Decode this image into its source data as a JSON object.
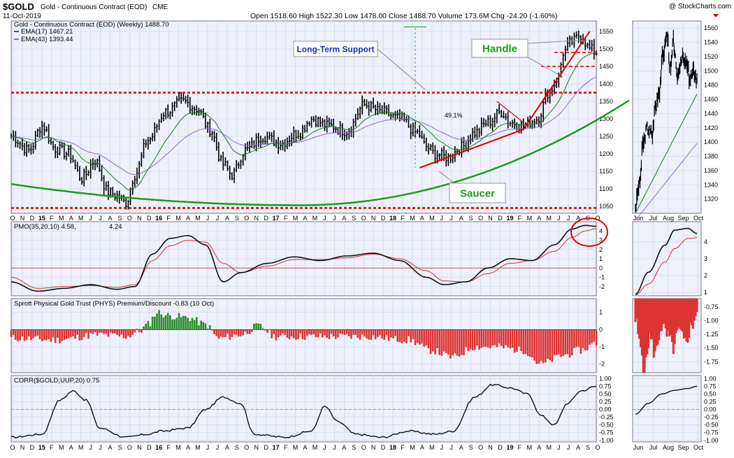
{
  "header": {
    "symbol": "$GOLD",
    "name": "Gold - Continuous Contract (EOD)",
    "exchange": "CME",
    "date": "11-Oct-2019",
    "ohlc": "Open 1518.60  High 1522.30  Low 1478.00  Close 1488.70  Volume 173.6M  Chg -24.20 (-1.60%)",
    "watermark": "@ StockCharts.com"
  },
  "colors": {
    "panel_bg": "#eef1fa",
    "grid": "#c8d2e6",
    "ema17": "#1d7a1d",
    "ema43": "#9966cc",
    "support": "#dd0000",
    "saucer": "#1a9c1a",
    "premium_pos": "#2e8b2e",
    "premium_neg": "#dd3333",
    "pmo": "#111111",
    "pmo_signal": "#cc3333"
  },
  "chart_data": [
    {
      "type": "bar",
      "id": "price",
      "title": "Gold - Continuous Contract (EOD) (Weekly) 1488.70",
      "legend": [
        "EMA(17) 1467.21",
        "EMA(43) 1393.44"
      ],
      "legend_placement": "top-left",
      "ylim": [
        1030,
        1580
      ],
      "yticks": [
        1050,
        1100,
        1150,
        1200,
        1250,
        1300,
        1350,
        1400,
        1450,
        1500,
        1550
      ],
      "x_labels": [
        "O",
        "N",
        "D",
        "15",
        "F",
        "M",
        "A",
        "M",
        "J",
        "J",
        "A",
        "S",
        "O",
        "N",
        "D",
        "16",
        "F",
        "M",
        "A",
        "M",
        "J",
        "J",
        "A",
        "S",
        "O",
        "N",
        "D",
        "17",
        "F",
        "M",
        "A",
        "M",
        "J",
        "J",
        "A",
        "S",
        "O",
        "N",
        "D",
        "18",
        "F",
        "M",
        "A",
        "M",
        "J",
        "J",
        "A",
        "S",
        "O",
        "N",
        "D",
        "19",
        "F",
        "M",
        "A",
        "M",
        "J",
        "J",
        "A",
        "S",
        "O"
      ],
      "weekly_close_keypoints": [
        [
          0,
          1250
        ],
        [
          8,
          1210
        ],
        [
          14,
          1280
        ],
        [
          20,
          1215
        ],
        [
          26,
          1200
        ],
        [
          32,
          1130
        ],
        [
          38,
          1180
        ],
        [
          44,
          1090
        ],
        [
          48,
          1080
        ],
        [
          52,
          1060
        ],
        [
          56,
          1140
        ],
        [
          62,
          1240
        ],
        [
          70,
          1320
        ],
        [
          78,
          1350
        ],
        [
          84,
          1330
        ],
        [
          90,
          1270
        ],
        [
          96,
          1170
        ],
        [
          100,
          1140
        ],
        [
          106,
          1210
        ],
        [
          114,
          1250
        ],
        [
          122,
          1230
        ],
        [
          130,
          1260
        ],
        [
          136,
          1300
        ],
        [
          144,
          1280
        ],
        [
          152,
          1265
        ],
        [
          160,
          1340
        ],
        [
          168,
          1320
        ],
        [
          176,
          1300
        ],
        [
          184,
          1260
        ],
        [
          188,
          1220
        ],
        [
          192,
          1200
        ],
        [
          198,
          1190
        ],
        [
          204,
          1220
        ],
        [
          210,
          1260
        ],
        [
          216,
          1290
        ],
        [
          222,
          1320
        ],
        [
          226,
          1290
        ],
        [
          232,
          1280
        ],
        [
          238,
          1300
        ],
        [
          244,
          1380
        ],
        [
          248,
          1420
        ],
        [
          250,
          1490
        ],
        [
          254,
          1520
        ],
        [
          258,
          1540
        ],
        [
          262,
          1500
        ],
        [
          265,
          1490
        ]
      ],
      "support_levels": [
        1375,
        1045
      ],
      "handle_levels": [
        1450,
        1490
      ],
      "annotations": [
        "Long-Term Support",
        "Handle",
        "Saucer",
        "49.1%"
      ],
      "right_panel": {
        "x_labels": [
          "Jun",
          "Jul",
          "Aug",
          "Sep",
          "Oct"
        ],
        "ylim": [
          1300,
          1570
        ],
        "yticks": [
          1320,
          1340,
          1360,
          1380,
          1400,
          1420,
          1440,
          1460,
          1480,
          1500,
          1520,
          1540,
          1560
        ]
      }
    },
    {
      "type": "line",
      "id": "pmo",
      "title": "PMO(35,20,10) 4.58,",
      "signal_value": "4.24",
      "ylim": [
        -3,
        5
      ],
      "yticks": [
        -2,
        -1,
        0,
        1,
        2,
        3,
        4
      ],
      "pmo_keypoints": [
        [
          0,
          -1.5
        ],
        [
          12,
          -2.5
        ],
        [
          24,
          -2.2
        ],
        [
          36,
          -1.8
        ],
        [
          48,
          -2.3
        ],
        [
          56,
          -2.0
        ],
        [
          64,
          1.5
        ],
        [
          72,
          3.2
        ],
        [
          80,
          3.5
        ],
        [
          88,
          2.5
        ],
        [
          96,
          -1.5
        ],
        [
          104,
          -0.5
        ],
        [
          116,
          0.5
        ],
        [
          128,
          1.2
        ],
        [
          140,
          0.8
        ],
        [
          152,
          1.3
        ],
        [
          164,
          1.6
        ],
        [
          176,
          0.8
        ],
        [
          188,
          -1.0
        ],
        [
          196,
          -1.8
        ],
        [
          206,
          -1.5
        ],
        [
          216,
          0.0
        ],
        [
          226,
          1.0
        ],
        [
          236,
          0.8
        ],
        [
          246,
          2.5
        ],
        [
          254,
          4.2
        ],
        [
          260,
          4.6
        ],
        [
          265,
          4.5
        ]
      ],
      "signal_keypoints": [
        [
          0,
          -1.0
        ],
        [
          12,
          -2.2
        ],
        [
          24,
          -2.0
        ],
        [
          36,
          -1.9
        ],
        [
          48,
          -2.1
        ],
        [
          56,
          -1.8
        ],
        [
          64,
          0.8
        ],
        [
          72,
          2.4
        ],
        [
          80,
          3.0
        ],
        [
          88,
          2.8
        ],
        [
          96,
          0.5
        ],
        [
          104,
          -0.5
        ],
        [
          116,
          0.2
        ],
        [
          128,
          0.9
        ],
        [
          140,
          0.9
        ],
        [
          152,
          1.1
        ],
        [
          164,
          1.5
        ],
        [
          176,
          1.0
        ],
        [
          188,
          -0.3
        ],
        [
          196,
          -1.4
        ],
        [
          206,
          -1.5
        ],
        [
          216,
          -0.6
        ],
        [
          226,
          0.5
        ],
        [
          236,
          0.8
        ],
        [
          246,
          1.8
        ],
        [
          254,
          3.3
        ],
        [
          260,
          4.0
        ],
        [
          265,
          4.24
        ]
      ],
      "right_panel": {
        "ylim": [
          0.8,
          5.2
        ],
        "yticks": [
          1,
          2,
          3,
          4
        ]
      }
    },
    {
      "type": "bar",
      "id": "premium",
      "title": "Sprott Physical Gold Trust (PHYS) Premium/Discount -0.83 (10 Oct)",
      "ylim": [
        -2.5,
        1.8
      ],
      "yticks": [
        -2,
        -1,
        0,
        1
      ],
      "premium_keypoints": [
        [
          0,
          -0.5
        ],
        [
          20,
          -0.6
        ],
        [
          40,
          -0.3
        ],
        [
          52,
          -0.4
        ],
        [
          58,
          -0.1
        ],
        [
          62,
          0.3
        ],
        [
          66,
          1.0
        ],
        [
          72,
          0.8
        ],
        [
          80,
          0.7
        ],
        [
          88,
          0.3
        ],
        [
          94,
          -0.5
        ],
        [
          104,
          -0.3
        ],
        [
          112,
          0.2
        ],
        [
          120,
          -0.4
        ],
        [
          140,
          -0.4
        ],
        [
          160,
          -0.4
        ],
        [
          180,
          -0.6
        ],
        [
          190,
          -1.2
        ],
        [
          200,
          -1.6
        ],
        [
          210,
          -1.0
        ],
        [
          220,
          -1.0
        ],
        [
          232,
          -1.2
        ],
        [
          240,
          -2.0
        ],
        [
          250,
          -1.5
        ],
        [
          258,
          -1.2
        ],
        [
          265,
          -0.8
        ]
      ],
      "right_panel": {
        "ylim": [
          -1.95,
          -0.6
        ],
        "yticks": [
          -0.75,
          -1.0,
          -1.25,
          -1.5,
          -1.75
        ]
      }
    },
    {
      "type": "line",
      "id": "corr",
      "title": "CORR($GOLD,UUP,20) 0.75",
      "ylim": [
        -1.05,
        1.1
      ],
      "yticks": [
        "1.00",
        "0.75",
        "0.50",
        "0.25",
        "0.00",
        "-0.25",
        "-0.50",
        "-0.75",
        "-1.00"
      ],
      "corr_keypoints": [
        [
          0,
          -0.9
        ],
        [
          14,
          -0.8
        ],
        [
          22,
          0.3
        ],
        [
          28,
          0.6
        ],
        [
          34,
          0.3
        ],
        [
          40,
          -0.6
        ],
        [
          52,
          -0.9
        ],
        [
          62,
          -0.8
        ],
        [
          68,
          -0.7
        ],
        [
          80,
          -0.6
        ],
        [
          88,
          0.0
        ],
        [
          96,
          0.4
        ],
        [
          104,
          0.2
        ],
        [
          110,
          -0.8
        ],
        [
          124,
          -0.9
        ],
        [
          136,
          -0.7
        ],
        [
          142,
          0.1
        ],
        [
          148,
          -0.4
        ],
        [
          156,
          -0.8
        ],
        [
          168,
          -0.9
        ],
        [
          180,
          -0.7
        ],
        [
          192,
          -0.8
        ],
        [
          200,
          -0.7
        ],
        [
          210,
          0.4
        ],
        [
          218,
          0.8
        ],
        [
          226,
          0.7
        ],
        [
          234,
          0.5
        ],
        [
          240,
          -0.2
        ],
        [
          246,
          -0.5
        ],
        [
          252,
          0.2
        ],
        [
          258,
          0.6
        ],
        [
          265,
          0.75
        ]
      ],
      "right_panel": {
        "ylim": [
          -1.05,
          1.1
        ],
        "yticks": [
          "1.00",
          "0.75",
          "0.50",
          "0.25",
          "0.00",
          "-0.25",
          "-0.50",
          "-0.75",
          "-1.00"
        ]
      }
    }
  ]
}
